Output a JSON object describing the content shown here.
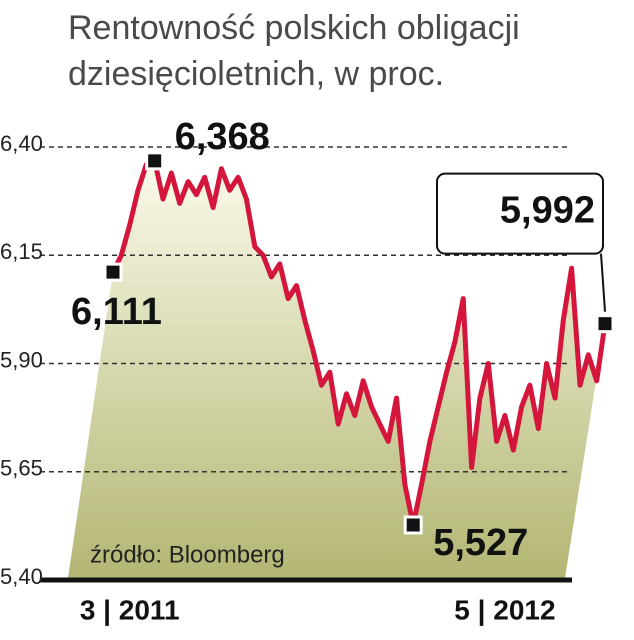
{
  "chart_data": {
    "type": "line",
    "title": "Rentowność polskich obligacji dziesięcioletnich, w proc.",
    "source": "źródło: Bloomberg",
    "categories": [
      null,
      null,
      "3 | 2011",
      null,
      null,
      null,
      null,
      null,
      null,
      null,
      null,
      null,
      null,
      null,
      null,
      null,
      null,
      null,
      null,
      null,
      null,
      null,
      null,
      null,
      null,
      null,
      null,
      null,
      null,
      null,
      null,
      null,
      null,
      null,
      null,
      null,
      null,
      null,
      null,
      null,
      null,
      null,
      null,
      null,
      null,
      null,
      null,
      "5 | 2012",
      null,
      null,
      null,
      null,
      null,
      null,
      null,
      null,
      null,
      null,
      null,
      null
    ],
    "series": [
      {
        "color": "#d4163c",
        "values": [
          6.111,
          6.15,
          6.22,
          6.3,
          6.36,
          6.368,
          6.28,
          6.34,
          6.27,
          6.32,
          6.29,
          6.33,
          6.26,
          6.35,
          6.3,
          6.33,
          6.28,
          6.17,
          6.15,
          6.1,
          6.13,
          6.05,
          6.08,
          6.0,
          5.93,
          5.85,
          5.88,
          5.76,
          5.83,
          5.78,
          5.86,
          5.8,
          5.76,
          5.72,
          5.82,
          5.62,
          5.527,
          5.62,
          5.72,
          5.8,
          5.88,
          5.95,
          6.05,
          5.66,
          5.82,
          5.9,
          5.72,
          5.78,
          5.7,
          5.8,
          5.85,
          5.75,
          5.9,
          5.82,
          6.0,
          6.12,
          5.85,
          5.92,
          5.86,
          5.992
        ],
        "value_labels": [
          "6,111",
          null,
          null,
          null,
          null,
          "6,368",
          null,
          null,
          null,
          null,
          null,
          null,
          null,
          null,
          null,
          null,
          null,
          null,
          null,
          null,
          null,
          null,
          null,
          null,
          null,
          null,
          null,
          null,
          null,
          null,
          null,
          null,
          null,
          null,
          null,
          null,
          "5,527",
          null,
          null,
          null,
          null,
          null,
          null,
          null,
          null,
          null,
          null,
          null,
          null,
          null,
          null,
          null,
          null,
          null,
          null,
          null,
          null,
          null,
          null,
          "5,992"
        ]
      }
    ],
    "ylim": [
      5.4,
      6.4
    ],
    "yticks": [
      {
        "value": 5.4,
        "label": "5,40"
      },
      {
        "value": 5.65,
        "label": "5,65"
      },
      {
        "value": 5.9,
        "label": "5,90"
      },
      {
        "value": 6.15,
        "label": "6,15"
      },
      {
        "value": 6.4,
        "label": "6,40"
      }
    ],
    "grid": true
  }
}
